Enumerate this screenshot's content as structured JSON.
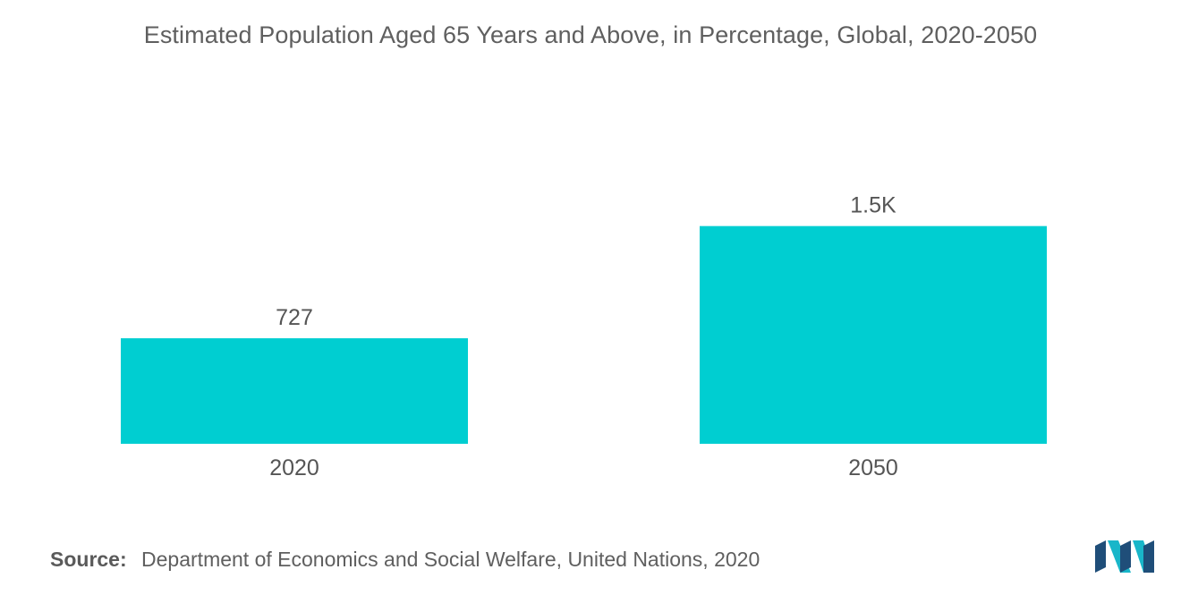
{
  "title": "Estimated Population Aged 65 Years and Above, in Percentage, Global, 2020-2050",
  "source": {
    "label": "Source:",
    "text": "Department of Economics and Social Welfare, United Nations, 2020"
  },
  "colors": {
    "bar": "#00CED1",
    "logo_dark": "#1f4e79",
    "logo_light": "#19b6c9"
  },
  "logo_icon": "company-logo-icon",
  "chart_data": {
    "type": "bar",
    "categories": [
      "2020",
      "2050"
    ],
    "values": [
      727,
      1500
    ],
    "data_labels": [
      "727",
      "1.5K"
    ],
    "title": "Estimated Population Aged 65 Years and Above, in Percentage, Global, 2020-2050",
    "xlabel": "",
    "ylabel": "",
    "ylim": [
      0,
      1800
    ],
    "grid": false,
    "legend": "none"
  }
}
